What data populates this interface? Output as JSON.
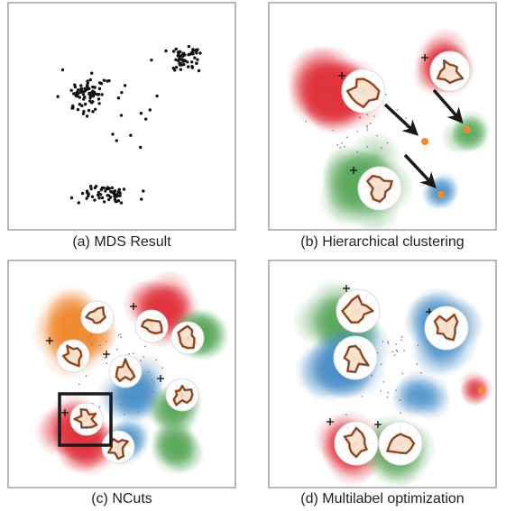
{
  "captions": {
    "a": "(a) MDS Result",
    "b": "(b) Hierarchical clustering",
    "c": "(c) NCuts",
    "d": "(d) Multilabel optimization"
  },
  "colors": {
    "red": "#e0333c",
    "blue": "#4a90c8",
    "green": "#59a85a",
    "orange": "#f08a30",
    "glyph_outline": "#c0541e",
    "frame": "#b8b8b8"
  }
}
